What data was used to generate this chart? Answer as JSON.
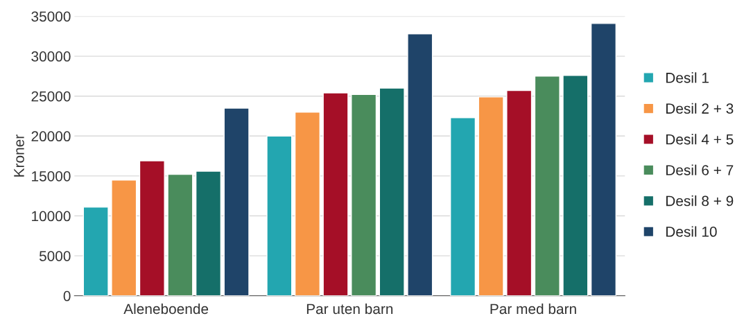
{
  "chart_data": {
    "type": "bar",
    "ylabel": "Kroner",
    "categories": [
      "Aleneboende",
      "Par uten barn",
      "Par med barn"
    ],
    "series": [
      {
        "name": "Desil 1",
        "color": "#23a6b0",
        "values": [
          11100,
          20000,
          22300
        ]
      },
      {
        "name": "Desil 2 + 3",
        "color": "#f79646",
        "values": [
          14500,
          23000,
          24900
        ]
      },
      {
        "name": "Desil 4 + 5",
        "color": "#a50f27",
        "values": [
          16900,
          25400,
          25700
        ]
      },
      {
        "name": "Desil 6 + 7",
        "color": "#4a8c5c",
        "values": [
          15200,
          25200,
          27500
        ]
      },
      {
        "name": "Desil 8 + 9",
        "color": "#156f69",
        "values": [
          15600,
          26000,
          27600
        ]
      },
      {
        "name": "Desil 10",
        "color": "#1f4469",
        "values": [
          23500,
          32800,
          34100
        ]
      }
    ],
    "ylim": [
      0,
      35000
    ],
    "yticks": [
      0,
      5000,
      10000,
      15000,
      20000,
      25000,
      30000,
      35000
    ],
    "grid": "y",
    "legend": "right"
  }
}
